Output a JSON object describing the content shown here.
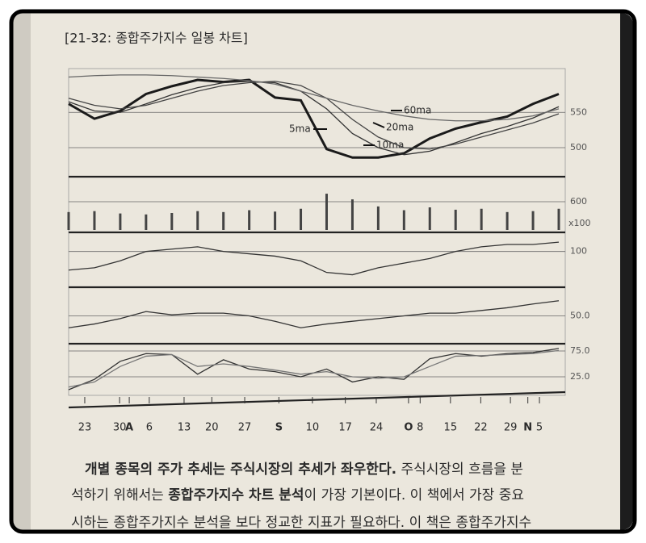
{
  "title": "[21-32: 종합주가지수 일봉 차트]",
  "chart_data": [
    {
      "type": "line",
      "x": [
        0,
        4,
        8,
        12,
        16,
        20,
        24,
        28,
        32,
        36,
        40,
        44,
        48,
        52,
        56,
        60,
        64,
        68,
        72,
        76
      ],
      "xlim": [
        0,
        77
      ],
      "ylim": [
        460,
        612
      ],
      "yticks": [
        500,
        550
      ],
      "series": [
        {
          "name": "5ma",
          "color": "#1a1a1a",
          "values": [
            562,
            541,
            552,
            576,
            587,
            596,
            593,
            596,
            571,
            567,
            498,
            486,
            486,
            492,
            513,
            527,
            536,
            544,
            562,
            576
          ]
        },
        {
          "name": "10ma",
          "color": "#333333",
          "values": [
            565,
            552,
            550,
            562,
            575,
            585,
            592,
            594,
            592,
            580,
            555,
            520,
            500,
            490,
            495,
            507,
            520,
            530,
            542,
            558
          ]
        },
        {
          "name": "20ma",
          "color": "#444444",
          "values": [
            570,
            560,
            555,
            560,
            570,
            580,
            588,
            592,
            594,
            588,
            570,
            540,
            515,
            500,
            498,
            505,
            515,
            525,
            535,
            548
          ]
        },
        {
          "name": "60ma",
          "color": "#666666",
          "values": [
            600,
            602,
            603,
            603,
            602,
            600,
            598,
            595,
            590,
            580,
            570,
            560,
            552,
            545,
            540,
            538,
            538,
            540,
            545,
            555
          ]
        }
      ]
    },
    {
      "type": "bar",
      "x": [
        0,
        4,
        8,
        12,
        16,
        20,
        24,
        28,
        32,
        36,
        40,
        44,
        48,
        52,
        56,
        60,
        64,
        68,
        72,
        76
      ],
      "xlim": [
        0,
        77
      ],
      "ylim": [
        0,
        1080
      ],
      "yticks": [
        600
      ],
      "unit": "x100",
      "color": "#444444",
      "values": [
        380,
        400,
        350,
        330,
        360,
        400,
        380,
        420,
        390,
        450,
        770,
        650,
        500,
        420,
        480,
        430,
        450,
        380,
        400,
        450
      ]
    },
    {
      "type": "line",
      "x": [
        0,
        4,
        8,
        12,
        16,
        20,
        24,
        28,
        32,
        36,
        40,
        44,
        48,
        52,
        56,
        60,
        64,
        68,
        72,
        76
      ],
      "xlim": [
        0,
        77
      ],
      "ylim": [
        70,
        115
      ],
      "yticks": [
        100
      ],
      "series": [
        {
          "color": "#333333",
          "values": [
            84,
            86,
            92,
            100,
            102,
            104,
            100,
            98,
            96,
            92,
            82,
            80,
            86,
            90,
            94,
            100,
            104,
            106,
            106,
            108
          ]
        }
      ]
    },
    {
      "type": "line",
      "x": [
        0,
        4,
        8,
        12,
        16,
        20,
        24,
        28,
        32,
        36,
        40,
        44,
        48,
        52,
        56,
        60,
        64,
        68,
        72,
        76
      ],
      "xlim": [
        0,
        77
      ],
      "ylim": [
        0,
        100
      ],
      "yticks": [
        {
          "value": 50,
          "label": "50.0"
        }
      ],
      "series": [
        {
          "color": "#333333",
          "values": [
            28,
            35,
            45,
            58,
            52,
            55,
            55,
            50,
            40,
            28,
            35,
            40,
            45,
            50,
            55,
            55,
            60,
            65,
            72,
            78
          ]
        }
      ]
    },
    {
      "type": "line",
      "x": [
        0,
        4,
        8,
        12,
        16,
        20,
        24,
        28,
        32,
        36,
        40,
        44,
        48,
        52,
        56,
        60,
        64,
        68,
        72,
        76
      ],
      "xlim": [
        0,
        77
      ],
      "ylim": [
        -11,
        86
      ],
      "yticks": [
        {
          "value": 25,
          "label": "25.0"
        },
        {
          "value": 75,
          "label": "75.0"
        }
      ],
      "series": [
        {
          "color": "#333333",
          "values": [
            0,
            20,
            55,
            70,
            68,
            30,
            58,
            40,
            35,
            25,
            40,
            15,
            25,
            20,
            60,
            70,
            65,
            70,
            72,
            80
          ]
        },
        {
          "color": "#777777",
          "values": [
            5,
            15,
            45,
            65,
            68,
            45,
            50,
            45,
            38,
            30,
            35,
            25,
            22,
            25,
            45,
            65,
            66,
            68,
            70,
            76
          ]
        }
      ],
      "xticks": [
        {
          "value": 2.5,
          "label": "23"
        },
        {
          "value": 7.9,
          "label": "30"
        },
        {
          "value": 9.4,
          "label": "A"
        },
        {
          "value": 12.5,
          "label": "6"
        },
        {
          "value": 17.9,
          "label": "13"
        },
        {
          "value": 22.2,
          "label": "20"
        },
        {
          "value": 27.3,
          "label": "27"
        },
        {
          "value": 32.6,
          "label": "S"
        },
        {
          "value": 37.8,
          "label": "10"
        },
        {
          "value": 42.9,
          "label": "17"
        },
        {
          "value": 47.7,
          "label": "24"
        },
        {
          "value": 52.7,
          "label": "O"
        },
        {
          "value": 54.5,
          "label": "8"
        },
        {
          "value": 59.2,
          "label": "15"
        },
        {
          "value": 63.9,
          "label": "22"
        },
        {
          "value": 68.5,
          "label": "29"
        },
        {
          "value": 71.2,
          "label": "N"
        },
        {
          "value": 73.0,
          "label": "5"
        }
      ]
    }
  ],
  "body": {
    "lines": [
      [
        {
          "text": "개별 종목의 주가 추세는 주식시장의 추세가 좌우한다.",
          "bold": true
        },
        {
          "text": " 주식시장의 흐름을 분",
          "bold": false
        }
      ],
      [
        {
          "text": "석하기 위해서는 ",
          "bold": false
        },
        {
          "text": "종합주가지수 차트 분석",
          "bold": true
        },
        {
          "text": "이 가장 기본이다. 이 책에서 가장 중요",
          "bold": false
        }
      ],
      [
        {
          "text": "시하는 종합주가지수 분석을 보다 정교한 지표가 필요하다. 이 책은 종합주가지수",
          "bold": false
        }
      ]
    ]
  }
}
